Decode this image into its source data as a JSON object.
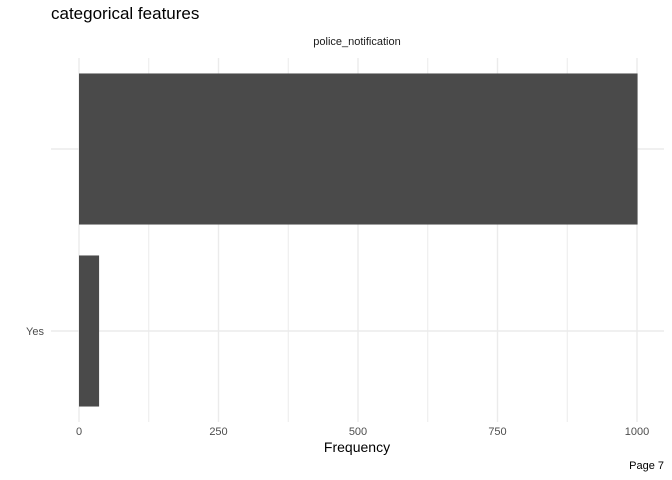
{
  "page": {
    "title": "categorical features",
    "footer": "Page 7"
  },
  "chart_data": {
    "type": "bar",
    "orientation": "horizontal",
    "facet_label": "police_notification",
    "categories": [
      "",
      "Yes"
    ],
    "values": [
      1001,
      36
    ],
    "xlabel": "Frequency",
    "ylabel": "",
    "xlim": [
      0,
      1050
    ],
    "x_ticks": [
      0,
      250,
      500,
      750,
      1000
    ],
    "x_tick_labels": [
      "0",
      "250",
      "500",
      "750",
      "1000"
    ],
    "grid": true,
    "bar_color": "#4a4a4a",
    "grid_color": "#ebebeb"
  }
}
